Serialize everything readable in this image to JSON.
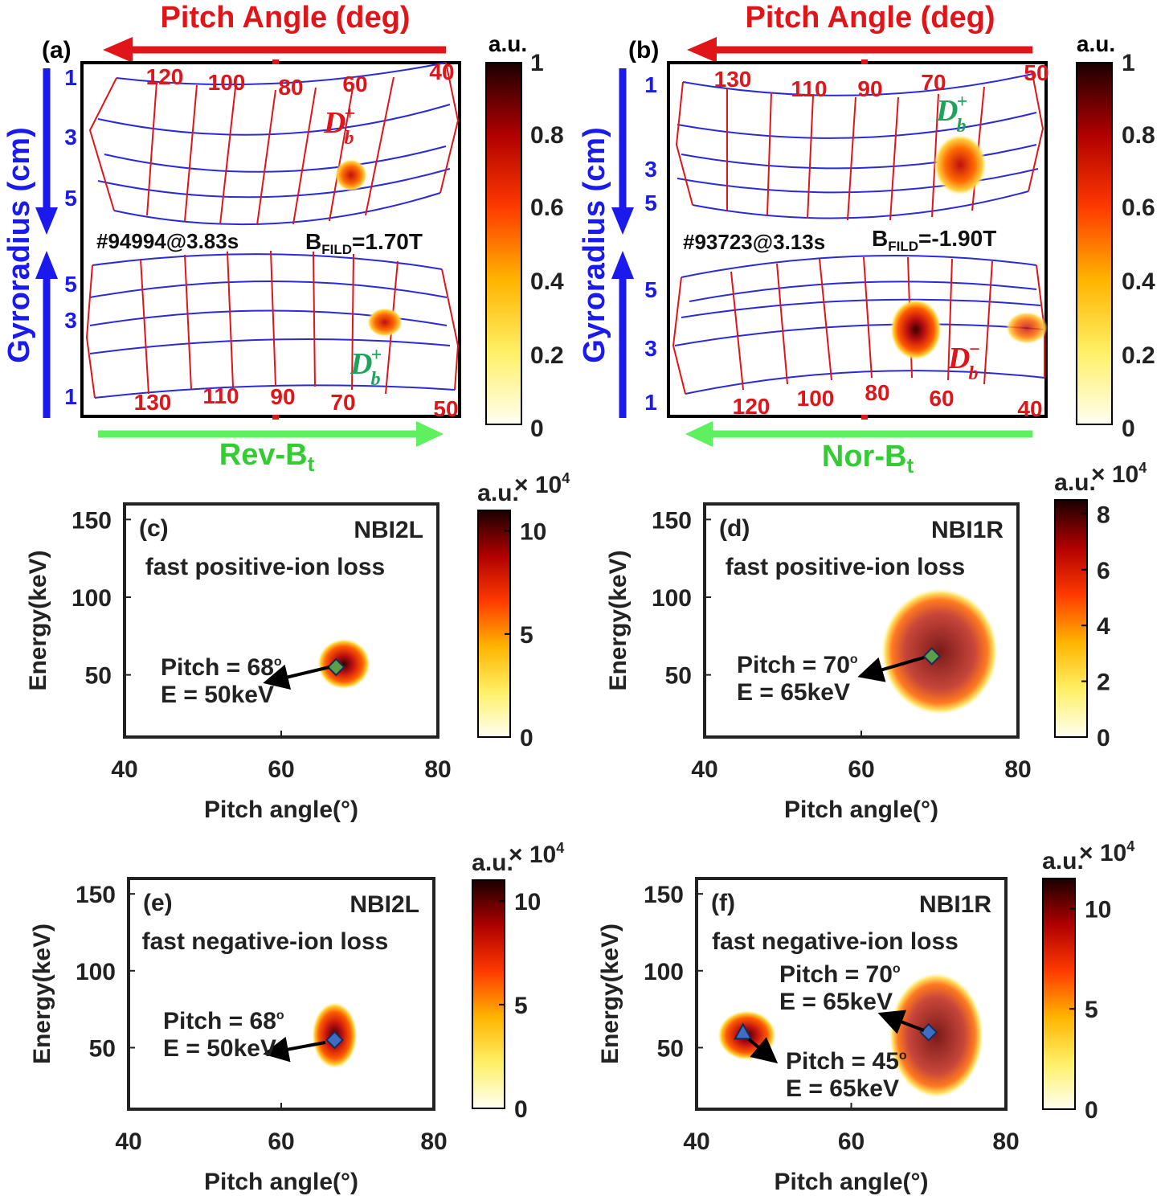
{
  "chart_data": [
    {
      "panel": "(a)",
      "type": "heatmap",
      "title": "Pitch Angle (deg)",
      "ylabel": "Gyroradius (cm)",
      "shot": "#94994@3.83s",
      "bfield_label": "B",
      "bfield_sub": "FILD",
      "bfield_value": "=1.70T",
      "field_direction": "Rev-B",
      "field_direction_sub": "t",
      "top_pitch_ticks": [
        "120",
        "100",
        "80",
        "60",
        "40"
      ],
      "bottom_pitch_ticks": [
        "130",
        "110",
        "90",
        "70",
        "50"
      ],
      "upper_gyro_ticks": [
        "1",
        "3",
        "5"
      ],
      "lower_gyro_ticks": [
        "5",
        "3",
        "1"
      ],
      "annotations": [
        {
          "base": "D",
          "sub": "b",
          "sup": "+",
          "color": "red"
        },
        {
          "base": "D",
          "sub": "b",
          "sup": "+",
          "color": "green"
        }
      ],
      "colorbar": {
        "label": "a.u.",
        "ticks": [
          "1",
          "0.8",
          "0.6",
          "0.4",
          "0.2",
          "0"
        ],
        "range": [
          0,
          1
        ]
      }
    },
    {
      "panel": "(b)",
      "type": "heatmap",
      "title": "Pitch Angle (deg)",
      "ylabel": "Gyroradius (cm)",
      "shot": "#93723@3.13s",
      "bfield_label": "B",
      "bfield_sub": "FILD",
      "bfield_value": "=-1.90T",
      "field_direction": "Nor-B",
      "field_direction_sub": "t",
      "top_pitch_ticks": [
        "130",
        "110",
        "90",
        "70",
        "50"
      ],
      "bottom_pitch_ticks": [
        "120",
        "100",
        "80",
        "60",
        "40"
      ],
      "upper_gyro_ticks": [
        "1",
        "3",
        "5"
      ],
      "lower_gyro_ticks": [
        "5",
        "3",
        "1"
      ],
      "annotations": [
        {
          "base": "D",
          "sub": "b",
          "sup": "+",
          "color": "green"
        },
        {
          "base": "D",
          "sub": "b",
          "sup": "−",
          "color": "red"
        }
      ],
      "colorbar": {
        "label": "a.u.",
        "ticks": [
          "1",
          "0.8",
          "0.6",
          "0.4",
          "0.2",
          "0"
        ],
        "range": [
          0,
          1
        ]
      }
    },
    {
      "panel": "(c)",
      "type": "heatmap",
      "beam": "NBI2L",
      "subtitle": "fast positive-ion loss",
      "xlabel": "Pitch angle(°)",
      "ylabel": "Energy(keV)",
      "xlim": [
        40,
        80
      ],
      "ylim": [
        10,
        160
      ],
      "xticks": [
        40,
        60,
        80
      ],
      "yticks": [
        50,
        100,
        150
      ],
      "blobs": [
        {
          "pitch": 68,
          "energy": 57,
          "spread_pitch": 2.5,
          "spread_energy": 12
        }
      ],
      "markers": [
        {
          "shape": "diamond",
          "color": "#5aa04a",
          "pitch": 67,
          "energy": 55
        }
      ],
      "arrow_labels": [
        {
          "line1": "Pitch = 68",
          "deg": "o",
          "line2": "E = 50keV"
        }
      ],
      "colorbar": {
        "label": "a.u.",
        "exponent": "× 10",
        "exp_power": "4",
        "ticks": [
          "10",
          "5",
          "0"
        ],
        "range": [
          0,
          11
        ]
      }
    },
    {
      "panel": "(d)",
      "type": "heatmap",
      "beam": "NBI1R",
      "subtitle": "fast positive-ion loss",
      "xlabel": "Pitch angle(°)",
      "ylabel": "Energy(keV)",
      "xlim": [
        40,
        80
      ],
      "ylim": [
        10,
        160
      ],
      "xticks": [
        40,
        60,
        80
      ],
      "yticks": [
        50,
        100,
        150
      ],
      "blobs": [
        {
          "pitch": 70,
          "energy": 65,
          "spread_pitch": 5.5,
          "spread_energy": 30
        }
      ],
      "markers": [
        {
          "shape": "diamond",
          "color": "#5aa04a",
          "pitch": 69,
          "energy": 62
        }
      ],
      "arrow_labels": [
        {
          "line1": "Pitch = 70",
          "deg": "o",
          "line2": "E = 65keV"
        }
      ],
      "colorbar": {
        "label": "a.u.",
        "exponent": "× 10",
        "exp_power": "4",
        "ticks": [
          "8",
          "6",
          "4",
          "2",
          "0"
        ],
        "range": [
          0,
          8.5
        ]
      }
    },
    {
      "panel": "(e)",
      "type": "heatmap",
      "beam": "NBI2L",
      "subtitle": "fast negative-ion loss",
      "xlabel": "Pitch angle(°)",
      "ylabel": "Energy(keV)",
      "xlim": [
        40,
        80
      ],
      "ylim": [
        10,
        160
      ],
      "xticks": [
        40,
        60,
        80
      ],
      "yticks": [
        50,
        100,
        150
      ],
      "blobs": [
        {
          "pitch": 67,
          "energy": 58,
          "spread_pitch": 2.2,
          "spread_energy": 16
        }
      ],
      "markers": [
        {
          "shape": "diamond",
          "color": "#3c6fc4",
          "pitch": 67,
          "energy": 55
        }
      ],
      "arrow_labels": [
        {
          "line1": "Pitch = 68",
          "deg": "o",
          "line2": "E = 50keV"
        }
      ],
      "colorbar": {
        "label": "a.u.",
        "exponent": "× 10",
        "exp_power": "4",
        "ticks": [
          "10",
          "5",
          "0"
        ],
        "range": [
          0,
          11
        ]
      }
    },
    {
      "panel": "(f)",
      "type": "heatmap",
      "beam": "NBI1R",
      "subtitle": "fast negative-ion loss",
      "xlabel": "Pitch angle(°)",
      "ylabel": "Energy(keV)",
      "xlim": [
        40,
        80
      ],
      "ylim": [
        10,
        160
      ],
      "xticks": [
        40,
        60,
        80
      ],
      "yticks": [
        50,
        100,
        150
      ],
      "blobs": [
        {
          "pitch": 46.5,
          "energy": 58,
          "spread_pitch": 2.8,
          "spread_energy": 12
        },
        {
          "pitch": 71,
          "energy": 58,
          "spread_pitch": 4.5,
          "spread_energy": 30
        }
      ],
      "markers": [
        {
          "shape": "triangle",
          "color": "#3c6fc4",
          "pitch": 46,
          "energy": 60
        },
        {
          "shape": "diamond",
          "color": "#3c6fc4",
          "pitch": 70,
          "energy": 60
        }
      ],
      "arrow_labels": [
        {
          "line1": "Pitch = 70",
          "deg": "o",
          "line2": "E = 65keV"
        },
        {
          "line1": "Pitch = 45",
          "deg": "o",
          "line2": "E = 65keV"
        }
      ],
      "colorbar": {
        "label": "a.u.",
        "exponent": "× 10",
        "exp_power": "4",
        "ticks": [
          "10",
          "5",
          "0"
        ],
        "range": [
          0,
          11.5
        ]
      }
    }
  ]
}
